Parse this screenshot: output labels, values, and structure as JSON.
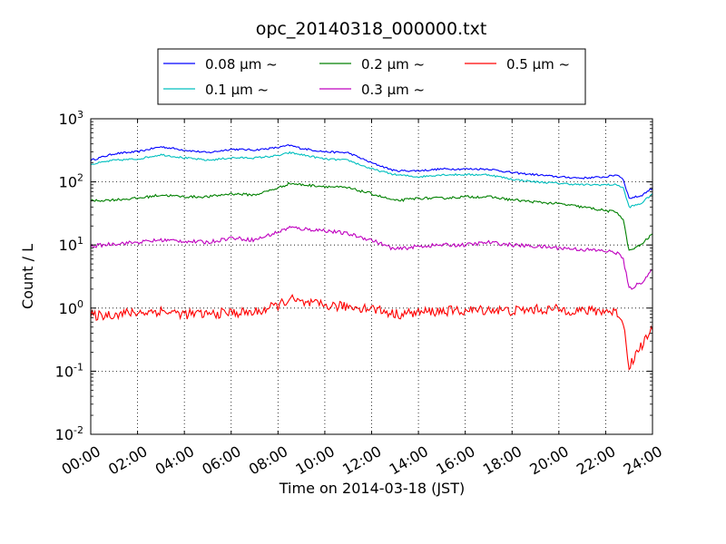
{
  "chart_data": {
    "type": "line",
    "title": "opc_20140318_000000.txt",
    "xlabel": "Time on 2014-03-18 (JST)",
    "ylabel": "Count / L",
    "y_scale": "log",
    "ylim": [
      0.01,
      1000
    ],
    "xlim": [
      "2014-03-18 00:00",
      "2014-03-19 00:00"
    ],
    "grid": true,
    "legend_position": "top-center, above plot",
    "x_tick_labels": [
      "00:00",
      "02:00",
      "04:00",
      "06:00",
      "08:00",
      "10:00",
      "12:00",
      "14:00",
      "16:00",
      "18:00",
      "20:00",
      "22:00",
      "24:00"
    ],
    "y_tick_labels": [
      {
        "base": "10",
        "exp": "-2"
      },
      {
        "base": "10",
        "exp": "-1"
      },
      {
        "base": "10",
        "exp": "0"
      },
      {
        "base": "10",
        "exp": "1"
      },
      {
        "base": "10",
        "exp": "2"
      },
      {
        "base": "10",
        "exp": "3"
      }
    ],
    "x": [
      "00:00",
      "01:00",
      "02:00",
      "03:00",
      "04:00",
      "05:00",
      "06:00",
      "07:00",
      "08:00",
      "08:30",
      "09:00",
      "10:00",
      "11:00",
      "12:00",
      "13:00",
      "14:00",
      "15:00",
      "16:00",
      "17:00",
      "18:00",
      "19:00",
      "20:00",
      "21:00",
      "22:00",
      "22:30",
      "22:45",
      "23:00",
      "23:30",
      "24:00"
    ],
    "series": [
      {
        "name": "0.08 μm ~",
        "color": "#0000ff",
        "values": [
          220,
          280,
          300,
          360,
          320,
          290,
          330,
          320,
          350,
          380,
          340,
          300,
          290,
          200,
          150,
          150,
          160,
          160,
          160,
          140,
          130,
          120,
          115,
          120,
          130,
          110,
          55,
          60,
          80
        ]
      },
      {
        "name": "0.1 μm ~",
        "color": "#00bfbf",
        "values": [
          190,
          220,
          230,
          270,
          240,
          220,
          240,
          240,
          260,
          290,
          270,
          230,
          220,
          160,
          130,
          120,
          130,
          130,
          130,
          110,
          100,
          95,
          90,
          90,
          90,
          80,
          40,
          45,
          65
        ]
      },
      {
        "name": "0.2 μm ~",
        "color": "#008000",
        "values": [
          50,
          52,
          55,
          62,
          58,
          58,
          65,
          62,
          80,
          95,
          90,
          85,
          80,
          65,
          50,
          55,
          55,
          58,
          58,
          52,
          48,
          45,
          40,
          35,
          33,
          25,
          8,
          10,
          15
        ]
      },
      {
        "name": "0.3 μm ~",
        "color": "#bf00bf",
        "values": [
          9.5,
          10.5,
          11,
          12,
          11.5,
          11,
          13,
          12,
          16,
          19,
          18,
          17,
          15,
          12,
          8.5,
          9.5,
          10,
          10,
          11,
          10,
          9.5,
          9,
          8.5,
          8,
          7.5,
          6,
          2,
          2.5,
          4
        ]
      },
      {
        "name": "0.5 μm ~",
        "color": "#ff0000",
        "values": [
          0.75,
          0.8,
          0.85,
          0.9,
          0.8,
          0.8,
          0.85,
          0.85,
          1.1,
          1.4,
          1.2,
          1.1,
          1.05,
          1.0,
          0.8,
          0.85,
          0.9,
          0.9,
          0.95,
          0.9,
          0.95,
          0.95,
          0.9,
          0.9,
          0.85,
          0.6,
          0.12,
          0.25,
          0.45
        ]
      }
    ]
  }
}
